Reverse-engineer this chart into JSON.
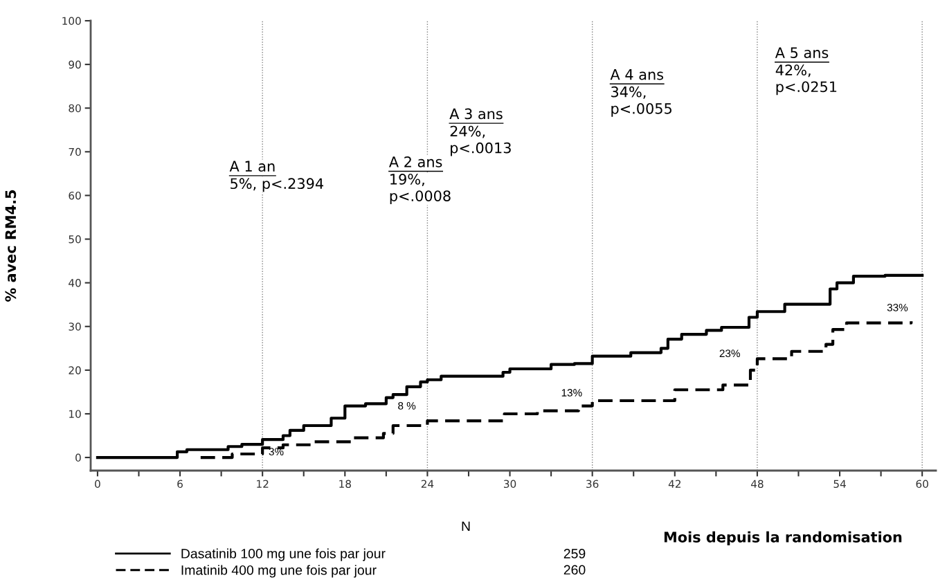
{
  "chart_data": {
    "type": "step",
    "ylabel": "% avec RM4.5",
    "xlabel": "Mois depuis la randomisation",
    "xlim": [
      -0.5,
      61
    ],
    "ylim": [
      -3,
      100
    ],
    "xticks": [
      0,
      {
        "value": 3,
        "label": null
      },
      6,
      {
        "value": 9,
        "label": null
      },
      12,
      {
        "value": 15,
        "label": null
      },
      18,
      {
        "value": 21,
        "label": null
      },
      24,
      {
        "value": 27,
        "label": null
      },
      30,
      {
        "value": 33,
        "label": null
      },
      36,
      {
        "value": 39,
        "label": null
      },
      42,
      {
        "value": 45,
        "label": null
      },
      48,
      {
        "value": 51,
        "label": null
      },
      54,
      {
        "value": 57,
        "label": null
      },
      60
    ],
    "yticks": [
      0,
      10,
      20,
      30,
      40,
      50,
      60,
      70,
      80,
      90,
      100
    ],
    "grid": false,
    "legend": "bottom",
    "series": [
      {
        "name": "Dasatinib 100 mg une fois par jour",
        "color": "#000000",
        "line_style": "solid",
        "x": [
          0,
          5.8,
          6.5,
          9.5,
          10.5,
          12,
          13.5,
          14,
          15,
          17,
          18,
          19.5,
          21,
          21.5,
          22.5,
          23.5,
          24,
          25,
          29.5,
          30,
          33,
          34.7,
          36,
          38.8,
          41,
          41.5,
          42.5,
          44.3,
          45.4,
          47.4,
          48,
          50,
          53.3,
          53.8,
          55,
          57.3,
          60
        ],
        "values": [
          0,
          1.3,
          1.8,
          2.5,
          3.0,
          4.1,
          5.0,
          6.2,
          7.3,
          9.0,
          11.8,
          12.3,
          13.7,
          14.4,
          16.2,
          17.3,
          17.8,
          18.6,
          19.5,
          20.3,
          21.3,
          21.5,
          23.2,
          24.0,
          25.0,
          27.1,
          28.2,
          29.1,
          29.8,
          32.1,
          33.4,
          35.1,
          38.6,
          40.0,
          41.5,
          41.7,
          41.7
        ]
      },
      {
        "name": "Imatinib 400 mg une fois par jour",
        "color": "#000000",
        "line_style": "dashed",
        "x": [
          7.5,
          9.8,
          12,
          13.5,
          15.5,
          18.5,
          20.8,
          21.5,
          24,
          29.6,
          32,
          35,
          36,
          42,
          45.5,
          47.5,
          48,
          50.5,
          53,
          53.5,
          54.5,
          59.2
        ],
        "values": [
          0,
          0.8,
          2.2,
          2.9,
          3.6,
          4.5,
          5.5,
          7.3,
          8.4,
          10.0,
          10.7,
          11.8,
          13.0,
          15.5,
          16.6,
          20.0,
          22.6,
          24.3,
          25.9,
          29.3,
          30.8,
          31.2
        ]
      }
    ],
    "ref_lines": [
      {
        "axis": "x",
        "value": 12,
        "color": "#808080",
        "line_style": "dotted"
      },
      {
        "axis": "x",
        "value": 24,
        "color": "#808080",
        "line_style": "dotted"
      },
      {
        "axis": "x",
        "value": 36,
        "color": "#808080",
        "line_style": "dotted"
      },
      {
        "axis": "x",
        "value": 48,
        "color": "#808080",
        "line_style": "dotted"
      },
      {
        "axis": "x",
        "value": 60,
        "color": "#808080",
        "line_style": "dotted"
      }
    ],
    "annotations": [
      "A 1 an\n5%, p<.2394",
      "A 2 ans\n19%,\np<.0008",
      "A 3 ans\n24%,\np<.0013",
      "A 4 ans\n34%,\np<.0055",
      "A 5 ans\n42%,\np<.0251",
      "N",
      "259",
      "260",
      "3%",
      "8 %",
      "13%",
      "23%",
      "33%"
    ]
  }
}
